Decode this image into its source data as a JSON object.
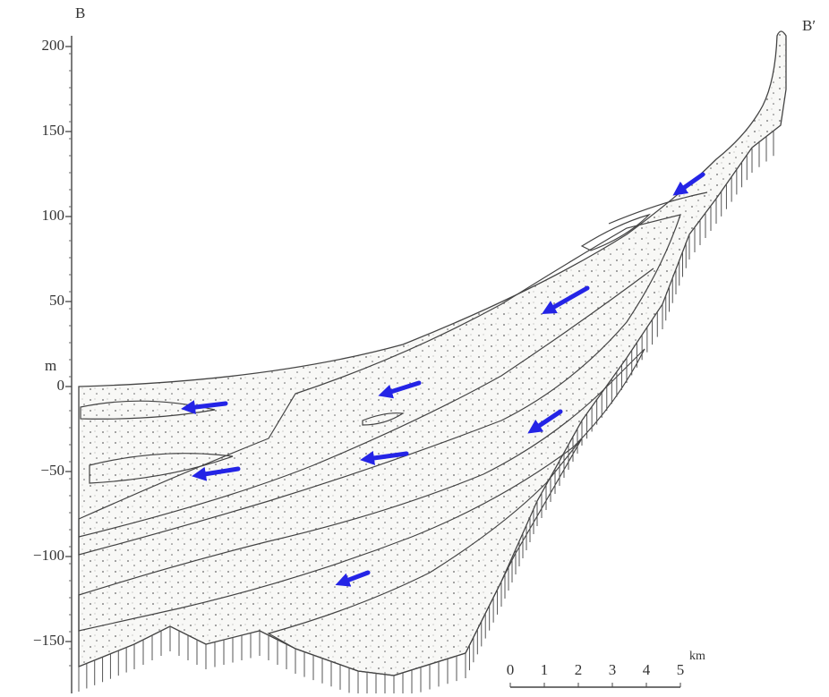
{
  "section": {
    "left_label": "B",
    "right_label": "B′"
  },
  "axis": {
    "unit": "m",
    "ticks": [
      "200",
      "150",
      "100",
      "50",
      "0",
      "−50",
      "−100",
      "−150"
    ]
  },
  "scale_bar": {
    "unit": "km",
    "labels": [
      "0",
      "1",
      "2",
      "3",
      "4",
      "5"
    ]
  }
}
